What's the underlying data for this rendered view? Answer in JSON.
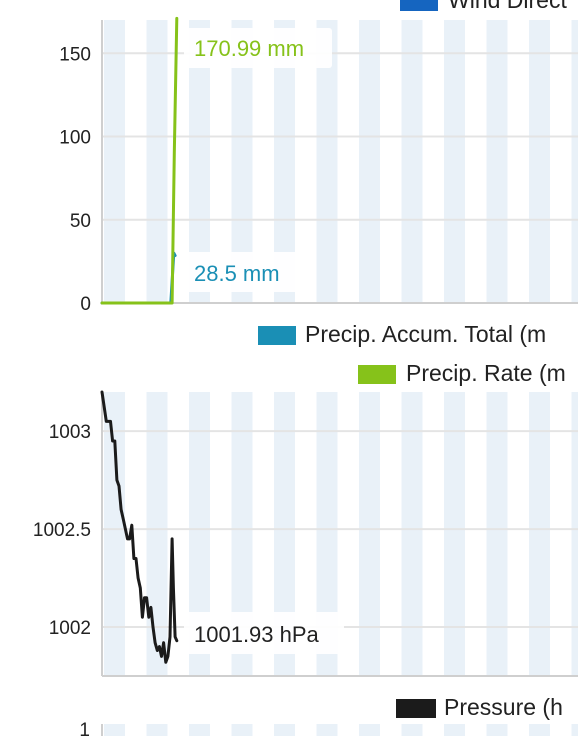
{
  "colors": {
    "precip_accum": "#1a8fb5",
    "precip_rate": "#86c21a",
    "pressure": "#1b1b1b",
    "wind_direction": "#1565c0",
    "band": "#e9f1f8",
    "gridline": "#e4e4e4",
    "axis": "#cfcfcf"
  },
  "top_legend": {
    "label": "Wind Direct",
    "color": "#1565c0"
  },
  "chart_data": [
    {
      "type": "line",
      "y_ticks": [
        0,
        50,
        100,
        150
      ],
      "ylim": [
        0,
        170
      ],
      "x_range": [
        0,
        112
      ],
      "grid": true,
      "series": [
        {
          "name": "Precip. Accum. Total (m",
          "color": "#1a8fb5",
          "x": [
            0,
            16.2,
            16.9,
            17.2
          ],
          "y": [
            0,
            0,
            30,
            28.5
          ]
        },
        {
          "name": "Precip. Rate (m",
          "color": "#86c21a",
          "x": [
            0,
            16.5,
            17.0,
            17.6
          ],
          "y": [
            0,
            0,
            90,
            170.99
          ]
        }
      ],
      "annotations": [
        {
          "text": "170.99 mm",
          "series": "Precip. Rate (m",
          "color": "#86c21a"
        },
        {
          "text": "28.5 mm",
          "series": "Precip. Accum. Total (m",
          "color": "#1a8fb5"
        }
      ],
      "legend": [
        {
          "label": "Precip. Accum. Total (m",
          "color": "#1a8fb5"
        },
        {
          "label": "Precip. Rate (m",
          "color": "#86c21a"
        }
      ],
      "legend_position": "bottom-right"
    },
    {
      "type": "line",
      "y_ticks": [
        1002,
        1002.5,
        1003
      ],
      "y_tick_labels": [
        "1002",
        "1002.5",
        "1003"
      ],
      "ylim": [
        1001.75,
        1003.2
      ],
      "x_range": [
        0,
        112
      ],
      "grid": true,
      "series": [
        {
          "name": "Pressure (h",
          "color": "#1b1b1b",
          "x": [
            0,
            1,
            2,
            2.5,
            3,
            3.5,
            4,
            4.5,
            5,
            5.5,
            6,
            6.5,
            7,
            7.5,
            8,
            8.5,
            9,
            9.5,
            10,
            10.5,
            11,
            11.5,
            12,
            12.5,
            13,
            13.5,
            14,
            14.5,
            15,
            15.5,
            16,
            16.5,
            16.8,
            17.2,
            17.6
          ],
          "y": [
            1003.2,
            1003.05,
            1003.05,
            1002.95,
            1002.95,
            1002.75,
            1002.72,
            1002.6,
            1002.55,
            1002.5,
            1002.45,
            1002.45,
            1002.52,
            1002.35,
            1002.35,
            1002.25,
            1002.2,
            1002.05,
            1002.15,
            1002.15,
            1002.05,
            1002.1,
            1002.0,
            1001.92,
            1001.88,
            1001.9,
            1001.85,
            1001.92,
            1001.82,
            1001.85,
            1001.95,
            1002.45,
            1002.2,
            1001.95,
            1001.93
          ]
        }
      ],
      "annotations": [
        {
          "text": "1001.93 hPa",
          "series": "Pressure (h",
          "color": "#222222"
        }
      ],
      "legend": [
        {
          "label": "Pressure (h",
          "color": "#1b1b1b"
        }
      ],
      "legend_position": "bottom-right"
    }
  ],
  "next_chart": {
    "first_tick": "1"
  }
}
